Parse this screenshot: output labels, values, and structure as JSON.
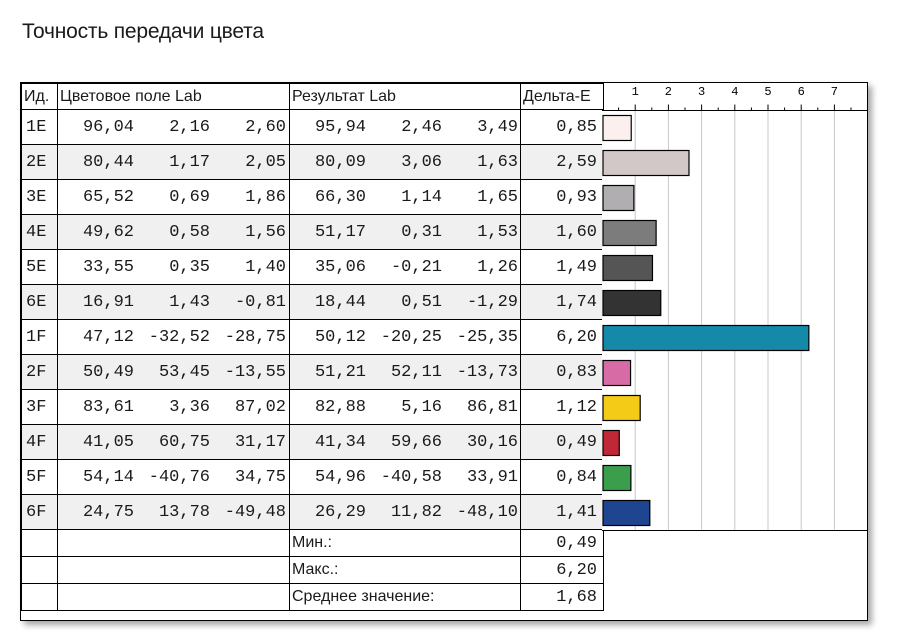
{
  "title": "Точность передачи цвета",
  "headers": {
    "id": "Ид.",
    "target": "Цветовое поле Lab",
    "result": "Результат Lab",
    "delta": "Дельта-E"
  },
  "rows": [
    {
      "id": "1E",
      "target": [
        "96,04",
        "2,16",
        "2,60"
      ],
      "result": [
        "95,94",
        "2,46",
        "3,49"
      ],
      "delta": "0,85"
    },
    {
      "id": "2E",
      "target": [
        "80,44",
        "1,17",
        "2,05"
      ],
      "result": [
        "80,09",
        "3,06",
        "1,63"
      ],
      "delta": "2,59"
    },
    {
      "id": "3E",
      "target": [
        "65,52",
        "0,69",
        "1,86"
      ],
      "result": [
        "66,30",
        "1,14",
        "1,65"
      ],
      "delta": "0,93"
    },
    {
      "id": "4E",
      "target": [
        "49,62",
        "0,58",
        "1,56"
      ],
      "result": [
        "51,17",
        "0,31",
        "1,53"
      ],
      "delta": "1,60"
    },
    {
      "id": "5E",
      "target": [
        "33,55",
        "0,35",
        "1,40"
      ],
      "result": [
        "35,06",
        "-0,21",
        "1,26"
      ],
      "delta": "1,49"
    },
    {
      "id": "6E",
      "target": [
        "16,91",
        "1,43",
        "-0,81"
      ],
      "result": [
        "18,44",
        "0,51",
        "-1,29"
      ],
      "delta": "1,74"
    },
    {
      "id": "1F",
      "target": [
        "47,12",
        "-32,52",
        "-28,75"
      ],
      "result": [
        "50,12",
        "-20,25",
        "-25,35"
      ],
      "delta": "6,20"
    },
    {
      "id": "2F",
      "target": [
        "50,49",
        "53,45",
        "-13,55"
      ],
      "result": [
        "51,21",
        "52,11",
        "-13,73"
      ],
      "delta": "0,83"
    },
    {
      "id": "3F",
      "target": [
        "83,61",
        "3,36",
        "87,02"
      ],
      "result": [
        "82,88",
        "5,16",
        "86,81"
      ],
      "delta": "1,12"
    },
    {
      "id": "4F",
      "target": [
        "41,05",
        "60,75",
        "31,17"
      ],
      "result": [
        "41,34",
        "59,66",
        "30,16"
      ],
      "delta": "0,49"
    },
    {
      "id": "5F",
      "target": [
        "54,14",
        "-40,76",
        "34,75"
      ],
      "result": [
        "54,96",
        "-40,58",
        "33,91"
      ],
      "delta": "0,84"
    },
    {
      "id": "6F",
      "target": [
        "24,75",
        "13,78",
        "-49,48"
      ],
      "result": [
        "26,29",
        "11,82",
        "-48,10"
      ],
      "delta": "1,41"
    }
  ],
  "summary": [
    {
      "label": "Мин.:",
      "value": "0,49"
    },
    {
      "label": "Макс.:",
      "value": "6,20"
    },
    {
      "label": "Среднее значение:",
      "value": "1,68"
    }
  ],
  "chart_data": {
    "type": "bar",
    "orientation": "horizontal",
    "categories": [
      "1E",
      "2E",
      "3E",
      "4E",
      "5E",
      "6E",
      "1F",
      "2F",
      "3F",
      "4F",
      "5F",
      "6F"
    ],
    "values": [
      0.85,
      2.59,
      0.93,
      1.6,
      1.49,
      1.74,
      6.2,
      0.83,
      1.12,
      0.49,
      0.84,
      1.41
    ],
    "colors": [
      "#fcf0ee",
      "#d2c8c7",
      "#b0aeb0",
      "#7c7c7c",
      "#555555",
      "#333333",
      "#1489a8",
      "#d76ba6",
      "#f4cb17",
      "#c02838",
      "#3b9e4d",
      "#1f4590"
    ],
    "ticks": [
      "1",
      "2",
      "3",
      "4",
      "5",
      "6",
      "7"
    ],
    "xlim": [
      0,
      7.6
    ],
    "grid": true
  }
}
